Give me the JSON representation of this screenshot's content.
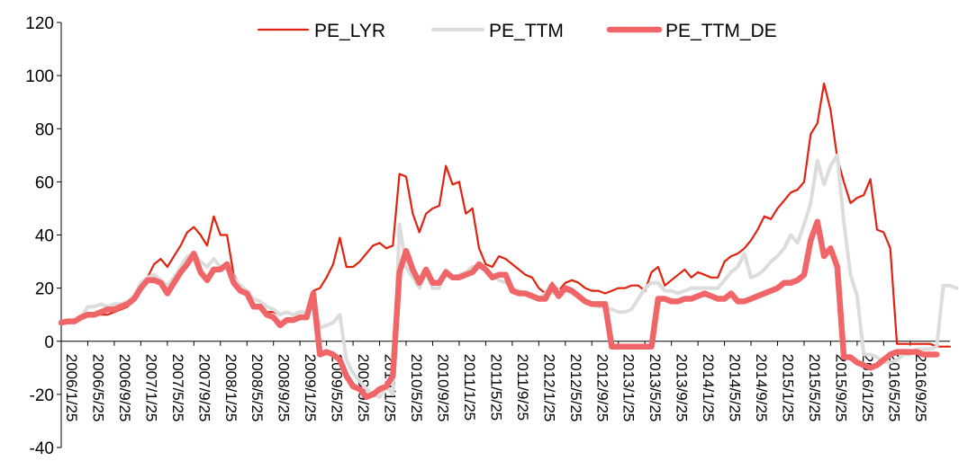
{
  "chart_data": {
    "type": "line",
    "title": "",
    "xlabel": "",
    "ylabel": "",
    "ylim": [
      -40,
      120
    ],
    "y_ticks": [
      -40,
      -20,
      0,
      20,
      40,
      60,
      80,
      100,
      120
    ],
    "grid": false,
    "legend_position": "top-center",
    "x_start": "2006/1/25",
    "x_interval_months": 1,
    "x_tick_labels": [
      "2006/1/25",
      "2006/5/25",
      "2006/9/25",
      "2007/1/25",
      "2007/5/25",
      "2007/9/25",
      "2008/1/25",
      "2008/5/25",
      "2008/9/25",
      "2009/1/25",
      "2009/5/25",
      "2009/9/25",
      "2010/1/25",
      "2010/5/25",
      "2010/9/25",
      "2011/1/25",
      "2011/5/25",
      "2011/9/25",
      "2012/1/25",
      "2012/5/25",
      "2012/9/25",
      "2013/1/25",
      "2013/5/25",
      "2013/9/25",
      "2014/1/25",
      "2014/5/25",
      "2014/9/25",
      "2015/1/25",
      "2015/5/25",
      "2015/9/25",
      "2016/1/25",
      "2016/5/25",
      "2016/9/25"
    ],
    "series": [
      {
        "name": "PE_LYR",
        "color": "#e0220f",
        "width": 2.2,
        "values": [
          7,
          7.5,
          8,
          9,
          10,
          10,
          10,
          10,
          11,
          12,
          13,
          16,
          21,
          24,
          29,
          31,
          28,
          32,
          36,
          41,
          43,
          40,
          36,
          47,
          40,
          40,
          25,
          21,
          18,
          14,
          13,
          11,
          11,
          10,
          11,
          10,
          11,
          11,
          19,
          20,
          24,
          29,
          39,
          28,
          28,
          30,
          33,
          36,
          37,
          35,
          36,
          63,
          62,
          48,
          41,
          48,
          50,
          51,
          66,
          59,
          60,
          48,
          50,
          35,
          29,
          28,
          32,
          31,
          29,
          27,
          25,
          24,
          20,
          18,
          22,
          19,
          22,
          23,
          22,
          20,
          19,
          19,
          18,
          19,
          20,
          20,
          21,
          21,
          19,
          26,
          28,
          21,
          23,
          25,
          27,
          24,
          26,
          25,
          24,
          24,
          30,
          32,
          33,
          35,
          38,
          42,
          47,
          46,
          50,
          53,
          56,
          57,
          60,
          78,
          82,
          97,
          87,
          69,
          60,
          52,
          54,
          55,
          61,
          42,
          41,
          35,
          -1,
          -1,
          -1,
          -1,
          -1,
          -1,
          -2,
          -2,
          -2
        ]
      },
      {
        "name": "PE_TTM",
        "color": "#dcdcdc",
        "width": 4,
        "values": [
          7,
          7.5,
          8,
          9,
          13,
          13,
          14,
          13,
          14,
          14,
          15,
          17,
          22,
          24,
          25,
          23,
          21,
          24,
          28,
          32,
          33,
          30,
          28,
          31,
          28,
          29,
          24,
          21,
          19,
          16,
          15,
          13,
          12,
          10,
          11,
          10,
          11,
          11,
          17,
          5,
          6,
          7,
          10,
          -7,
          -12,
          -15,
          -18,
          -20,
          -21,
          -17,
          -20,
          44,
          28,
          24,
          20,
          26,
          20,
          20,
          27,
          24,
          25,
          26,
          28,
          28,
          27,
          25,
          23,
          22,
          20,
          19,
          18,
          17,
          16,
          18,
          18,
          19,
          19,
          18,
          17,
          15,
          14,
          13,
          13,
          12,
          11,
          11,
          12,
          16,
          20,
          22,
          22,
          19,
          19,
          18,
          19,
          20,
          20,
          20,
          20,
          20,
          23,
          26,
          28,
          33,
          24,
          25,
          27,
          30,
          32,
          35,
          40,
          37,
          44,
          52,
          68,
          59,
          66,
          70,
          45,
          25,
          17,
          -5,
          -5,
          -6,
          -8,
          -8,
          -7,
          -5,
          -5,
          -3,
          -3,
          -3,
          -2,
          21,
          21,
          20
        ]
      },
      {
        "name": "PE_TTM_DE",
        "color": "#f06668",
        "width": 6.5,
        "values": [
          7,
          7.5,
          7.5,
          9,
          10,
          10,
          11,
          12,
          12,
          13,
          14,
          16,
          20,
          23,
          23,
          22,
          18,
          22,
          26,
          29,
          33,
          26,
          23,
          27,
          27,
          29,
          22,
          19,
          18,
          13,
          13,
          10,
          9,
          6,
          8,
          8,
          9,
          9,
          18,
          -5,
          -4,
          -5,
          -7,
          -13,
          -17,
          -18,
          -21,
          -20,
          -18,
          -17,
          -13,
          26,
          34,
          27,
          22,
          27,
          22,
          22,
          26,
          24,
          24,
          25,
          26,
          29,
          27,
          24,
          25,
          25,
          19,
          18,
          18,
          17,
          16,
          16,
          21,
          17,
          20,
          19,
          17,
          15,
          14,
          14,
          14,
          -2,
          -2,
          -2,
          -2,
          -2,
          -2,
          -2,
          16,
          16,
          15,
          15,
          16,
          16,
          17,
          18,
          17,
          16,
          16,
          18,
          15,
          15,
          16,
          17,
          18,
          19,
          20,
          22,
          22,
          23,
          25,
          38,
          45,
          32,
          35,
          28,
          -6,
          -6,
          -8,
          -9,
          -10,
          -9,
          -7,
          -5,
          -4,
          -4,
          -4,
          -4,
          -5,
          -5,
          -5
        ]
      }
    ]
  }
}
